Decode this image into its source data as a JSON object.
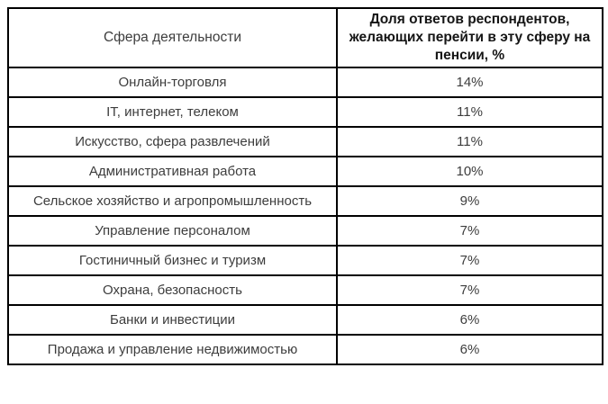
{
  "table": {
    "columns": [
      {
        "label": "Сфера деятельности"
      },
      {
        "label": "Доля ответов респондентов, желающих перейти в эту сферу на пенсии, %"
      }
    ],
    "rows": [
      {
        "sphere": "Онлайн-торговля",
        "share": "14%"
      },
      {
        "sphere": "IT, интернет, телеком",
        "share": "11%"
      },
      {
        "sphere": "Искусство, сфера развлечений",
        "share": "11%"
      },
      {
        "sphere": "Административная работа",
        "share": "10%"
      },
      {
        "sphere": "Сельское хозяйство и агропромышленность",
        "share": "9%"
      },
      {
        "sphere": "Управление персоналом",
        "share": "7%"
      },
      {
        "sphere": "Гостиничный бизнес и туризм",
        "share": "7%"
      },
      {
        "sphere": "Охрана, безопасность",
        "share": "7%"
      },
      {
        "sphere": "Банки и инвестиции",
        "share": "6%"
      },
      {
        "sphere": "Продажа и управление недвижимостью",
        "share": "6%"
      }
    ]
  },
  "colors": {
    "border": "#000000",
    "text_regular": "#3d3d3d",
    "text_header_bold": "#151515",
    "background": "#ffffff"
  },
  "chart_data": {
    "type": "table",
    "title": "",
    "columns": [
      "Сфера деятельности",
      "Доля ответов респондентов, желающих перейти в эту сферу на пенсии, %"
    ],
    "categories": [
      "Онлайн-торговля",
      "IT, интернет, телеком",
      "Искусство, сфера развлечений",
      "Административная работа",
      "Сельское хозяйство и агропромышленность",
      "Управление персоналом",
      "Гостиничный бизнес и туризм",
      "Охрана, безопасность",
      "Банки и инвестиции",
      "Продажа и управление недвижимостью"
    ],
    "values": [
      14,
      11,
      11,
      10,
      9,
      7,
      7,
      7,
      6,
      6
    ],
    "value_unit": "%"
  }
}
